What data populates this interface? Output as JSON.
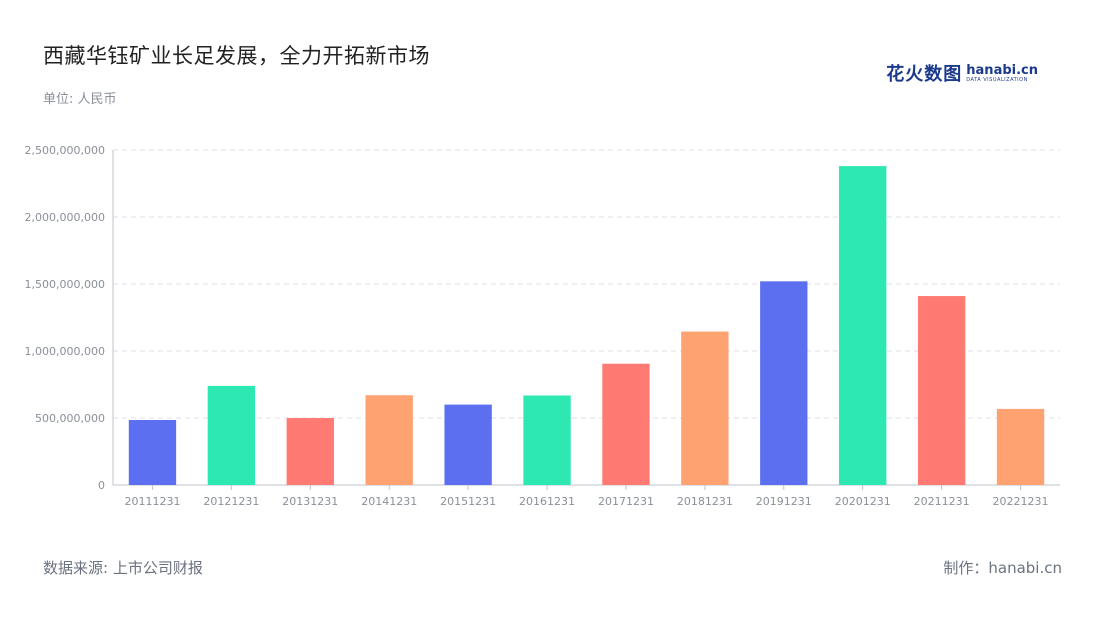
{
  "title": "西藏华钰矿业长足发展，全力开拓新市场",
  "unit": "单位: 人民币",
  "logo": {
    "cn": "花火数图",
    "en": "hanabi.cn",
    "sub": "DATA VISUALIZATION"
  },
  "footer": {
    "source": "数据来源: 上市公司财报",
    "credit": "制作：hanabi.cn"
  },
  "chart_data": {
    "type": "bar",
    "categories": [
      "20111231",
      "20121231",
      "20131231",
      "20141231",
      "20151231",
      "20161231",
      "20171231",
      "20181231",
      "20191231",
      "20201231",
      "20211231",
      "20221231"
    ],
    "values": [
      485000000,
      740000000,
      500000000,
      670000000,
      600000000,
      668000000,
      905000000,
      1145000000,
      1520000000,
      2380000000,
      1410000000,
      568000000
    ],
    "colors": [
      "#5b6ff0",
      "#2ee8b2",
      "#ff7a72",
      "#ffa272",
      "#5b6ff0",
      "#2ee8b2",
      "#ff7a72",
      "#ffa272",
      "#5b6ff0",
      "#2ee8b2",
      "#ff7a72",
      "#ffa272"
    ],
    "yticks": [
      "0",
      "500,000,000",
      "1,000,000,000",
      "1,500,000,000",
      "2,000,000,000",
      "2,500,000,000"
    ],
    "ylim": [
      0,
      2500000000
    ],
    "grid": true
  }
}
